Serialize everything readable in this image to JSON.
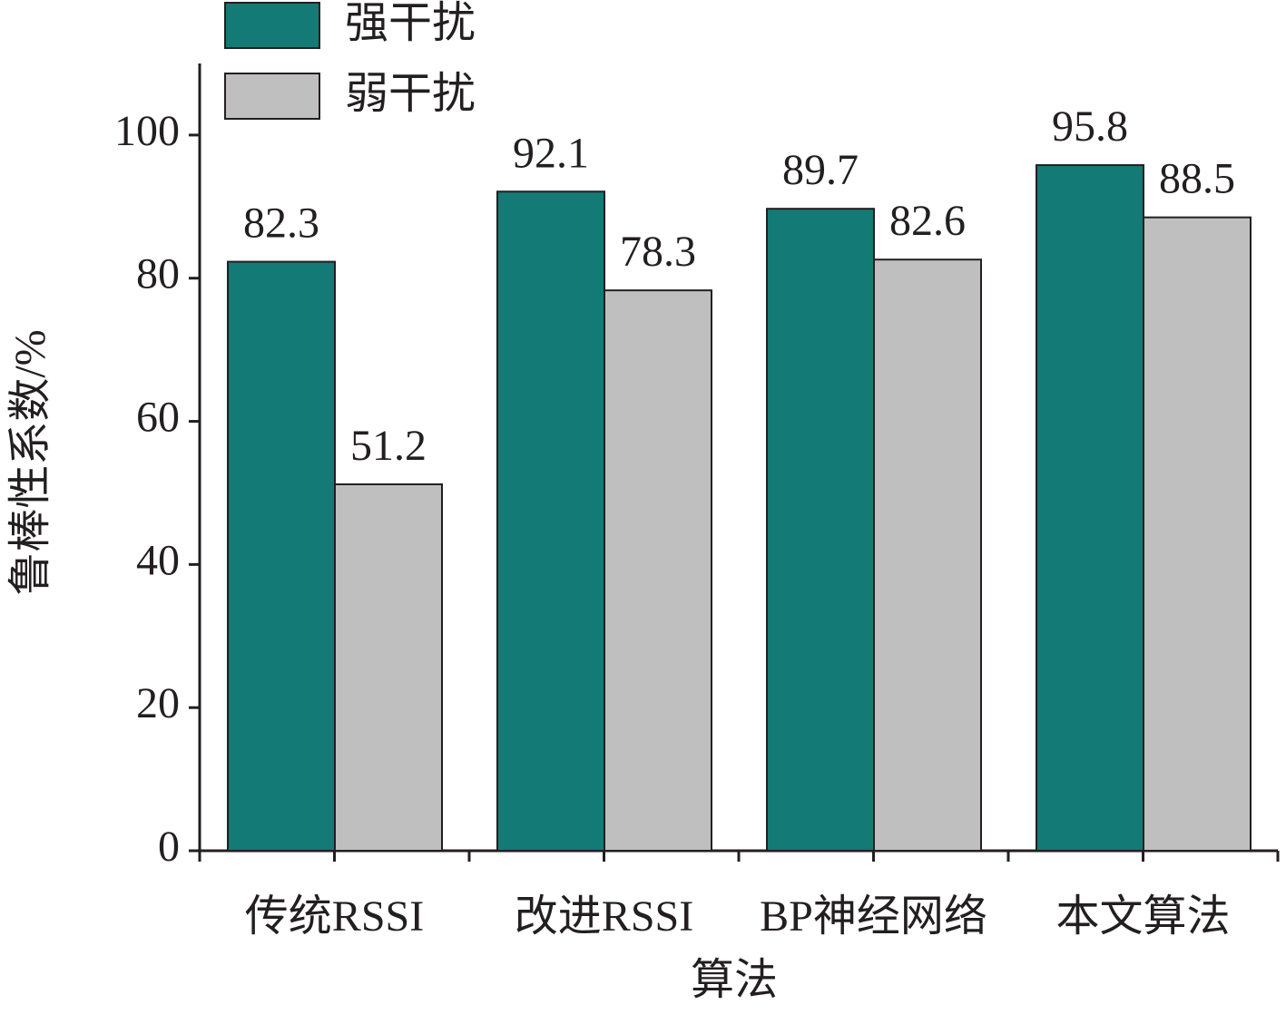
{
  "chart_data": {
    "type": "bar",
    "x_label": "算法",
    "y_label": "鲁棒性系数/%",
    "categories": [
      "传统RSSI",
      "改进RSSI",
      "BP神经网络",
      "本文算法"
    ],
    "series": [
      {
        "name": "强干扰",
        "color": "#137a76",
        "values": [
          82.3,
          92.1,
          89.7,
          95.8
        ]
      },
      {
        "name": "弱干扰",
        "color": "#c0bfc0",
        "values": [
          51.2,
          78.3,
          82.6,
          88.5
        ]
      }
    ],
    "ylim": [
      0,
      110
    ],
    "yticks": [
      0,
      20,
      40,
      60,
      80,
      100
    ],
    "legend": "top-left",
    "grid": false
  }
}
